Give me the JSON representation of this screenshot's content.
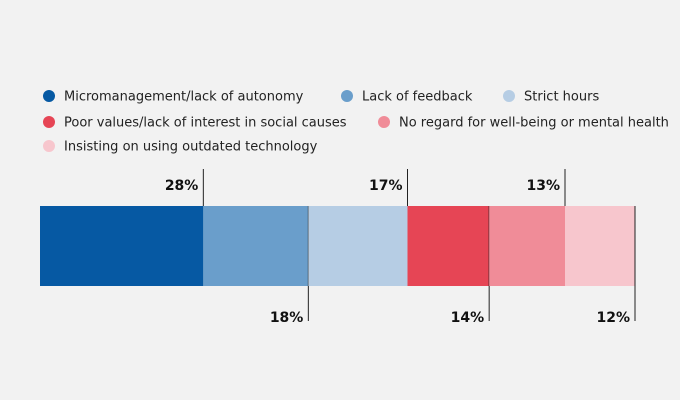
{
  "chart_data": {
    "type": "bar",
    "subtype": "stacked-horizontal-100",
    "title": "",
    "xlabel": "",
    "ylabel": "",
    "legend_position": "top-left",
    "grid": false,
    "series": [
      {
        "name": "Micromanagement/lack of autonomy",
        "value": 28,
        "label": "28%",
        "color": "#0659a3",
        "label_side": "above"
      },
      {
        "name": "Lack of feedback",
        "value": 18,
        "label": "18%",
        "color": "#6a9ecb",
        "label_side": "below"
      },
      {
        "name": "Strict hours",
        "value": 17,
        "label": "17%",
        "color": "#b6cde4",
        "label_side": "above"
      },
      {
        "name": "Poor values/lack of interest in social causes",
        "value": 14,
        "label": "14%",
        "color": "#e64555",
        "label_side": "below"
      },
      {
        "name": "No regard for well-being or mental health",
        "value": 13,
        "label": "13%",
        "color": "#f08c98",
        "label_side": "above"
      },
      {
        "name": "Insisting on using outdated technology",
        "value": 12,
        "label": "12%",
        "color": "#f7c6cd",
        "label_side": "below"
      }
    ]
  }
}
